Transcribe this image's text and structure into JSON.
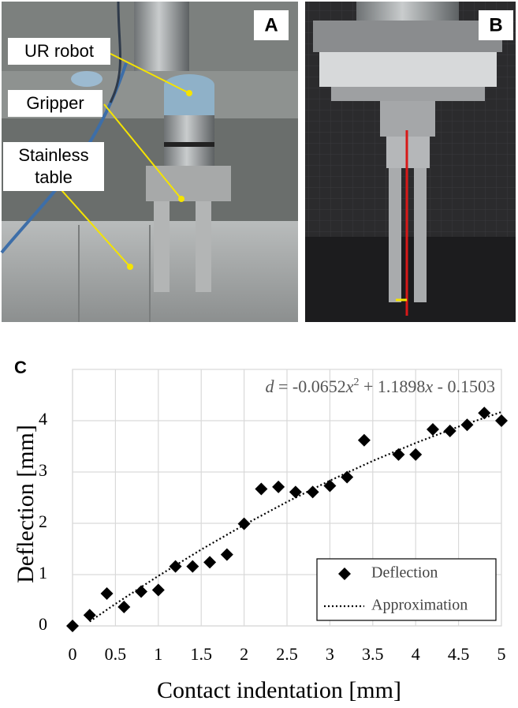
{
  "panels": {
    "a": {
      "label": "A",
      "annotations": [
        [
          "UR robot"
        ],
        [
          "Gripper"
        ],
        [
          "Stainless",
          "table"
        ]
      ]
    },
    "b": {
      "label": "B"
    }
  },
  "chart_data": {
    "type": "scatter",
    "panel_label": "C",
    "annotation": [
      "d",
      " = -0.0652",
      "x",
      "2",
      " + 1.1898",
      "x",
      " - 0.1503"
    ],
    "x_label": "Contact indentation [mm]",
    "y_label": "Deflection [mm]",
    "xlim": [
      0,
      5
    ],
    "ylim": [
      0,
      5
    ],
    "xticks": [
      0,
      0.5,
      1,
      1.5,
      2,
      2.5,
      3,
      3.5,
      4,
      4.5,
      5
    ],
    "yticks": [
      0,
      1,
      2,
      3,
      4
    ],
    "grid": true,
    "legend": "lower right",
    "series": [
      {
        "name": "Deflection",
        "color": "#000000",
        "marker": "diamond",
        "x": [
          0,
          0.2,
          0.4,
          0.6,
          0.8,
          1.0,
          1.2,
          1.4,
          1.6,
          1.8,
          2.0,
          2.2,
          2.4,
          2.6,
          2.8,
          3.0,
          3.2,
          3.4,
          3.8,
          4.0,
          4.2,
          4.4,
          4.6,
          4.8,
          5.0
        ],
        "values": [
          0,
          0.21,
          0.63,
          0.37,
          0.67,
          0.7,
          1.16,
          1.16,
          1.24,
          1.39,
          1.99,
          2.67,
          2.71,
          2.61,
          2.61,
          2.73,
          2.9,
          3.62,
          3.34,
          3.34,
          3.83,
          3.8,
          3.92,
          4.15,
          4.0
        ]
      },
      {
        "name": "Approximation",
        "color": "#000000",
        "line": "dotted",
        "x": [
          0.2,
          0.5,
          1,
          1.5,
          2,
          2.5,
          3,
          3.5,
          4,
          4.5,
          5
        ],
        "values": [
          0.085,
          0.429,
          0.974,
          1.488,
          1.969,
          2.417,
          2.832,
          3.216,
          3.566,
          3.884,
          4.169
        ]
      }
    ]
  }
}
